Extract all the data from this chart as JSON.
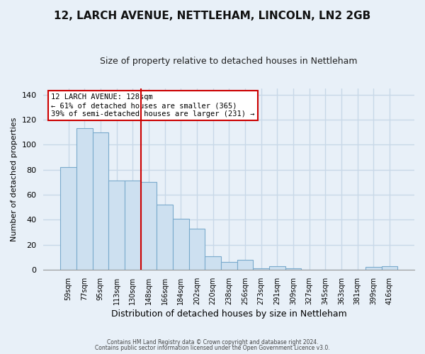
{
  "title": "12, LARCH AVENUE, NETTLEHAM, LINCOLN, LN2 2GB",
  "subtitle": "Size of property relative to detached houses in Nettleham",
  "xlabel": "Distribution of detached houses by size in Nettleham",
  "ylabel": "Number of detached properties",
  "categories": [
    "59sqm",
    "77sqm",
    "95sqm",
    "113sqm",
    "130sqm",
    "148sqm",
    "166sqm",
    "184sqm",
    "202sqm",
    "220sqm",
    "238sqm",
    "256sqm",
    "273sqm",
    "291sqm",
    "309sqm",
    "327sqm",
    "345sqm",
    "363sqm",
    "381sqm",
    "399sqm",
    "416sqm"
  ],
  "values": [
    82,
    113,
    110,
    71,
    71,
    70,
    52,
    41,
    33,
    11,
    6,
    8,
    1,
    3,
    1,
    0,
    0,
    0,
    0,
    2,
    3
  ],
  "bar_color": "#cde0f0",
  "bar_edge_color": "#7aaacc",
  "vline_color": "#cc0000",
  "annotation_title": "12 LARCH AVENUE: 128sqm",
  "annotation_line1": "← 61% of detached houses are smaller (365)",
  "annotation_line2": "39% of semi-detached houses are larger (231) →",
  "annotation_box_color": "#ffffff",
  "annotation_box_edge": "#cc0000",
  "ylim": [
    0,
    145
  ],
  "footer1": "Contains HM Land Registry data © Crown copyright and database right 2024.",
  "footer2": "Contains public sector information licensed under the Open Government Licence v3.0.",
  "background_color": "#e8f0f8",
  "grid_color": "#c8d8e8",
  "title_fontsize": 11,
  "subtitle_fontsize": 9
}
